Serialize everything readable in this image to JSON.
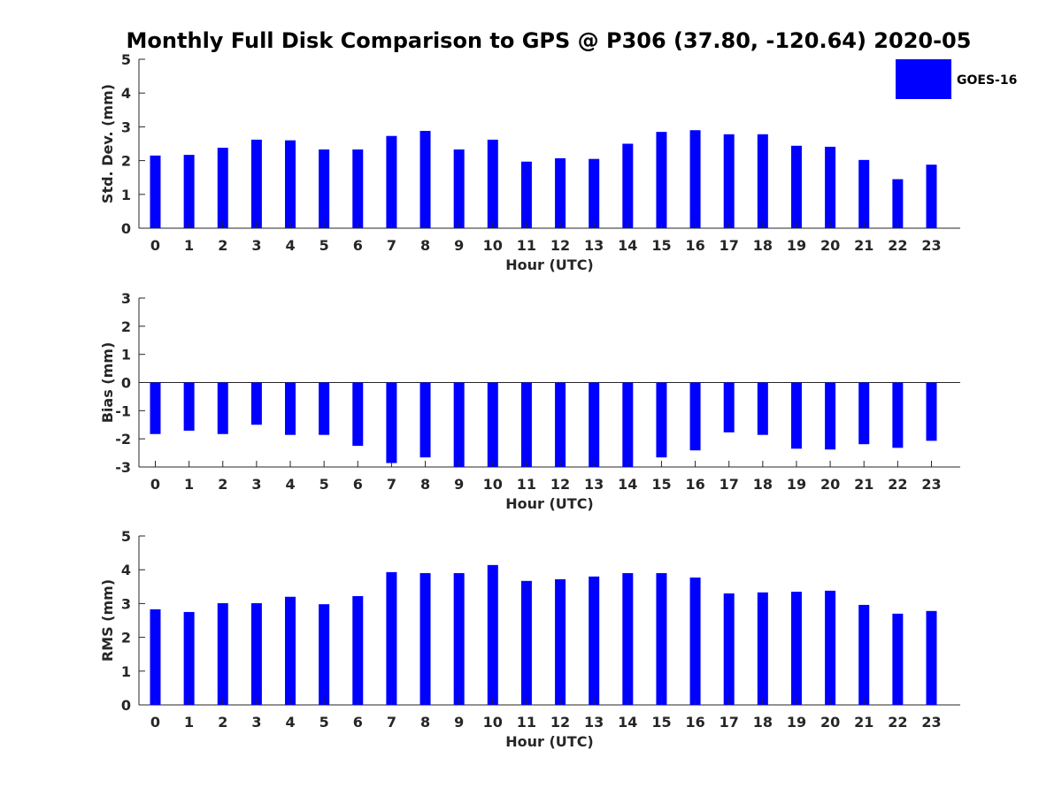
{
  "figure": {
    "title": "Monthly Full Disk Comparison to GPS @ P306 (37.80, -120.64) 2020-05",
    "legend": {
      "label": "GOES-16",
      "color": "#0000ff",
      "placement": "top-right"
    }
  },
  "chart_data": [
    {
      "type": "bar",
      "categories": [
        "0",
        "1",
        "2",
        "3",
        "4",
        "5",
        "6",
        "7",
        "8",
        "9",
        "10",
        "11",
        "12",
        "13",
        "14",
        "15",
        "16",
        "17",
        "18",
        "19",
        "20",
        "21",
        "22",
        "23"
      ],
      "series": [
        {
          "name": "GOES-16",
          "color": "#0000ff",
          "values": [
            2.15,
            2.17,
            2.38,
            2.62,
            2.6,
            2.33,
            2.33,
            2.73,
            2.88,
            2.33,
            2.62,
            1.97,
            2.07,
            2.05,
            2.5,
            2.85,
            2.9,
            2.78,
            2.78,
            2.44,
            2.41,
            2.02,
            1.45,
            1.88
          ]
        }
      ],
      "xlabel": "Hour (UTC)",
      "ylabel": "Std. Dev. (mm)",
      "ylim": [
        0,
        5
      ],
      "yticks": [
        "0",
        "1",
        "2",
        "3",
        "4",
        "5"
      ],
      "grid": false
    },
    {
      "type": "bar",
      "categories": [
        "0",
        "1",
        "2",
        "3",
        "4",
        "5",
        "6",
        "7",
        "8",
        "9",
        "10",
        "11",
        "12",
        "13",
        "14",
        "15",
        "16",
        "17",
        "18",
        "19",
        "20",
        "21",
        "22",
        "23"
      ],
      "series": [
        {
          "name": "GOES-16",
          "color": "#0000ff",
          "values": [
            -1.83,
            -1.71,
            -1.83,
            -1.5,
            -1.86,
            -1.86,
            -2.25,
            -2.86,
            -2.66,
            -3.0,
            -3.0,
            -3.0,
            -3.0,
            -3.0,
            -3.0,
            -2.66,
            -2.41,
            -1.77,
            -1.86,
            -2.35,
            -2.38,
            -2.19,
            -2.32,
            -2.07
          ]
        }
      ],
      "xlabel": "Hour (UTC)",
      "ylabel": "Bias (mm)",
      "ylim": [
        -3,
        3
      ],
      "yticks": [
        "-3",
        "-2",
        "-1",
        "0",
        "1",
        "2",
        "3"
      ],
      "grid": false
    },
    {
      "type": "bar",
      "categories": [
        "0",
        "1",
        "2",
        "3",
        "4",
        "5",
        "6",
        "7",
        "8",
        "9",
        "10",
        "11",
        "12",
        "13",
        "14",
        "15",
        "16",
        "17",
        "18",
        "19",
        "20",
        "21",
        "22",
        "23"
      ],
      "series": [
        {
          "name": "GOES-16",
          "color": "#0000ff",
          "values": [
            2.83,
            2.75,
            3.01,
            3.01,
            3.2,
            2.98,
            3.22,
            3.93,
            3.9,
            3.9,
            4.14,
            3.67,
            3.72,
            3.8,
            3.9,
            3.9,
            3.77,
            3.3,
            3.33,
            3.35,
            3.38,
            2.96,
            2.7,
            2.78
          ]
        }
      ],
      "xlabel": "Hour (UTC)",
      "ylabel": "RMS (mm)",
      "ylim": [
        0,
        5
      ],
      "yticks": [
        "0",
        "1",
        "2",
        "3",
        "4",
        "5"
      ],
      "grid": false
    }
  ]
}
